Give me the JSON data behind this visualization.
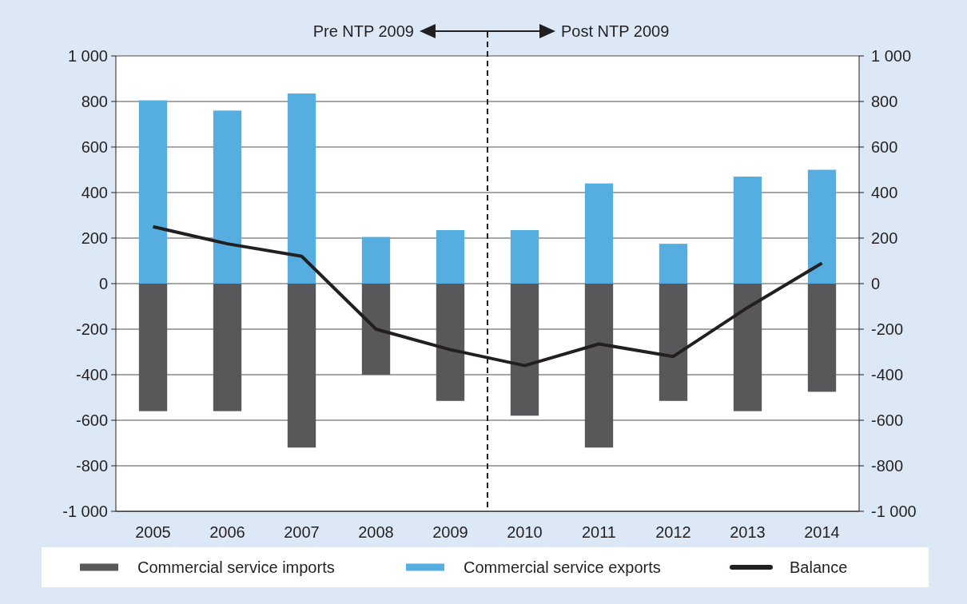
{
  "chart_data": {
    "type": "bar",
    "stacked": true,
    "x": [
      2005,
      2006,
      2007,
      2008,
      2009,
      2010,
      2011,
      2012,
      2013,
      2014
    ],
    "xlim": [
      2004.5,
      2014.5
    ],
    "xticks": [
      2005,
      2006,
      2007,
      2008,
      2009,
      2010,
      2011,
      2012,
      2013,
      2014
    ],
    "ylim": [
      -1000,
      1000
    ],
    "yticks": [
      {
        "value": -1000,
        "label": "-1 000"
      },
      -800,
      -600,
      -400,
      -200,
      0,
      200,
      400,
      600,
      800,
      {
        "value": 1000,
        "label": "1 000"
      }
    ],
    "y2lim": [
      -1000,
      1000
    ],
    "y2ticks": [
      {
        "value": -1000,
        "label": "-1 000"
      },
      -800,
      -600,
      -400,
      -200,
      0,
      200,
      400,
      600,
      800,
      {
        "value": 1000,
        "label": "1 000"
      }
    ],
    "grid": "y",
    "legend": "bottom",
    "series": [
      {
        "name": "Commercial service imports",
        "color": "#58585a",
        "values": [
          -560,
          -560,
          -720,
          -400,
          -515,
          -580,
          -720,
          -515,
          -560,
          -475
        ]
      },
      {
        "name": "Commercial service exports",
        "color": "#55ade0",
        "values": [
          805,
          760,
          835,
          205,
          235,
          235,
          440,
          175,
          470,
          500
        ]
      },
      {
        "name": "Balance",
        "type": "line",
        "color": "#231f20",
        "marker": "none",
        "values": [
          250,
          175,
          120,
          -200,
          -290,
          -360,
          -265,
          -320,
          -105,
          90
        ]
      }
    ],
    "ref_lines": [
      {
        "axis": "x",
        "value": 2009.5,
        "line_style": "dashed",
        "color": "#231f20"
      }
    ],
    "annotations": [
      "Pre NTP 2009",
      "Post NTP 2009"
    ]
  }
}
